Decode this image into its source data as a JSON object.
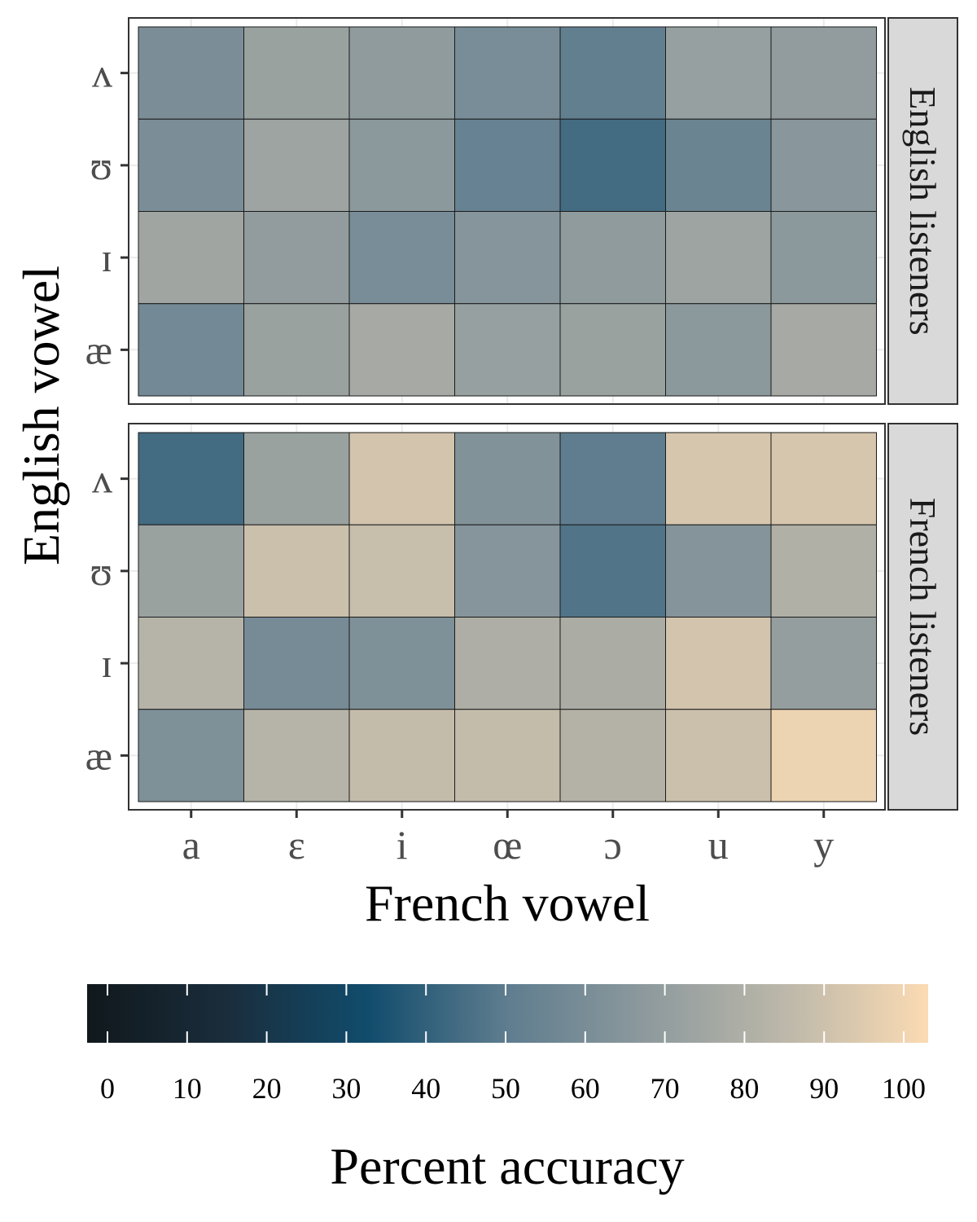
{
  "chart_data": {
    "type": "heatmap",
    "xlabel": "French vowel",
    "ylabel": "English vowel",
    "x_categories": [
      "a",
      "ɛ",
      "i",
      "œ",
      "ɔ",
      "u",
      "y"
    ],
    "y_categories": [
      "ʌ",
      "ʊ",
      "ɪ",
      "æ"
    ],
    "panels": [
      {
        "name": "English listeners",
        "values": [
          [
            60,
            71,
            67,
            59,
            51,
            70,
            68
          ],
          [
            60,
            72,
            66,
            53,
            44,
            54,
            65
          ],
          [
            73,
            68,
            59,
            64,
            67,
            72,
            66
          ],
          [
            57,
            71,
            75,
            70,
            71,
            66,
            75
          ]
        ]
      },
      {
        "name": "French listeners",
        "values": [
          [
            44,
            71,
            89,
            62,
            50,
            90,
            90
          ],
          [
            71,
            87,
            86,
            64,
            47,
            63,
            79
          ],
          [
            81,
            58,
            61,
            78,
            77,
            89,
            69
          ],
          [
            61,
            81,
            85,
            85,
            80,
            87,
            96
          ]
        ]
      }
    ],
    "legend": {
      "title": "Percent accuracy",
      "ticks": [
        "0",
        "10",
        "20",
        "30",
        "40",
        "50",
        "60",
        "70",
        "80",
        "90",
        "100"
      ],
      "position": "bottom"
    },
    "colors": {
      "scale": [
        "#10181c",
        "#1a2d3c",
        "#114c6c",
        "#5f7d8f",
        "#8e9a9d",
        "#bdb8aa",
        "#fbdbb3"
      ],
      "strip_fill": "#d9d9d9",
      "panel_border": "#333333",
      "grid": "#ebebeb"
    },
    "grid": true
  }
}
